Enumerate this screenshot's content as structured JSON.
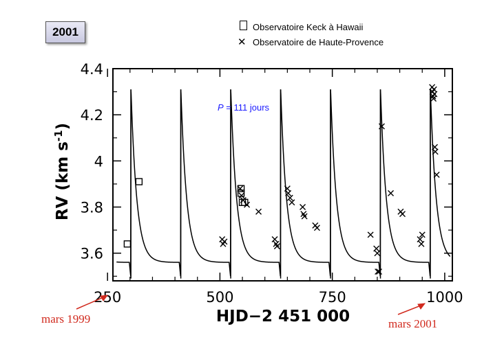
{
  "badge": "2001",
  "legend": [
    {
      "symbol": "square-marker",
      "label": "Observatoire Keck à Hawaii"
    },
    {
      "symbol": "x-marker",
      "label": "Observatoire de Haute-Provence"
    }
  ],
  "annotations": {
    "period": {
      "p": "P",
      "rest": " = 111 jours"
    },
    "left_note": "mars 1999",
    "right_note": "mars 2001"
  },
  "colors": {
    "note": "#d12a1e",
    "period": "#1a1aff",
    "curve": "#000000"
  },
  "chart_data": {
    "type": "scatter",
    "xlabel": "HJD−2 451 000",
    "ylabel": "RV  (km s",
    "ylabel_sup": "-1",
    "ylabel_end": ")",
    "xlim": [
      262,
      1017
    ],
    "ylim": [
      3.48,
      4.4
    ],
    "xticks": [
      250,
      500,
      750,
      1000
    ],
    "yticks": [
      3.6,
      3.8,
      4.0,
      4.2,
      4.4
    ],
    "ytick_labels": [
      "3.6",
      "3.8",
      "4",
      "4.2",
      "4.4"
    ],
    "grid": false,
    "curve": {
      "name": "orbital fit",
      "period": 111,
      "drop_phases": [
        302,
        413,
        524,
        635,
        746,
        857,
        968
      ],
      "x_range": [
        270,
        1012
      ]
    },
    "series": [
      {
        "name": "Observatoire Keck à Hawaii",
        "marker": "square",
        "points": [
          [
            294,
            3.64
          ],
          [
            320,
            3.91
          ],
          [
            547,
            3.88
          ],
          [
            547,
            3.86
          ],
          [
            550,
            3.82
          ],
          [
            555,
            3.82
          ]
        ]
      },
      {
        "name": "Observatoire de Haute-Provence",
        "marker": "x",
        "points": [
          [
            505,
            3.66
          ],
          [
            507,
            3.64
          ],
          [
            510,
            3.65
          ],
          [
            545,
            3.88
          ],
          [
            548,
            3.85
          ],
          [
            552,
            3.83
          ],
          [
            560,
            3.81
          ],
          [
            586,
            3.78
          ],
          [
            622,
            3.66
          ],
          [
            625,
            3.64
          ],
          [
            627,
            3.63
          ],
          [
            650,
            3.88
          ],
          [
            652,
            3.86
          ],
          [
            656,
            3.84
          ],
          [
            660,
            3.82
          ],
          [
            684,
            3.8
          ],
          [
            686,
            3.77
          ],
          [
            688,
            3.76
          ],
          [
            712,
            3.72
          ],
          [
            716,
            3.71
          ],
          [
            835,
            3.68
          ],
          [
            848,
            3.62
          ],
          [
            850,
            3.6
          ],
          [
            851,
            3.52
          ],
          [
            854,
            3.52
          ],
          [
            860,
            4.15
          ],
          [
            880,
            3.86
          ],
          [
            902,
            3.78
          ],
          [
            906,
            3.77
          ],
          [
            945,
            3.66
          ],
          [
            948,
            3.64
          ],
          [
            950,
            3.68
          ],
          [
            972,
            4.32
          ],
          [
            973,
            4.3
          ],
          [
            974,
            4.28
          ],
          [
            975,
            4.27
          ],
          [
            976,
            4.31
          ],
          [
            977,
            4.29
          ],
          [
            978,
            4.06
          ],
          [
            979,
            4.04
          ],
          [
            982,
            3.94
          ]
        ]
      }
    ]
  }
}
